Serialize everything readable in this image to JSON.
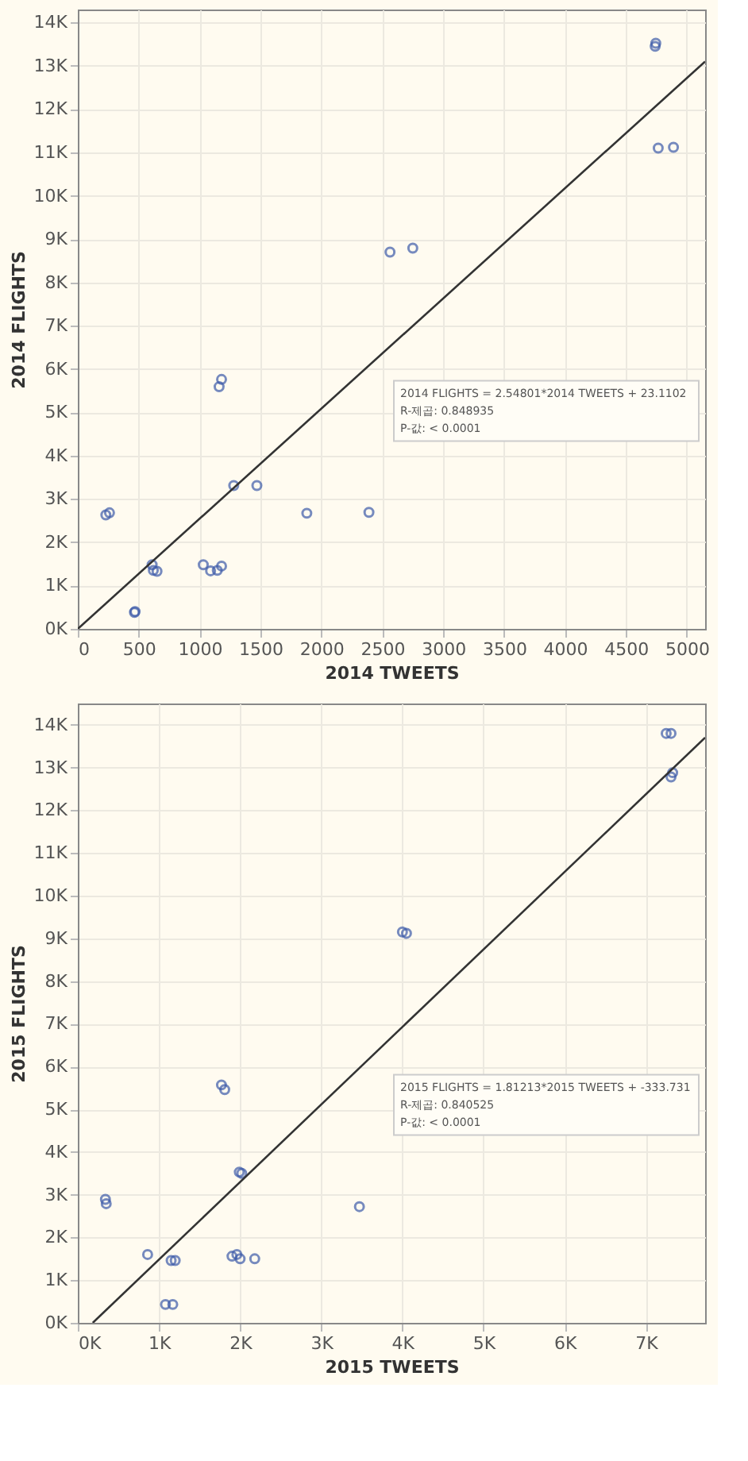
{
  "chart_data": [
    {
      "type": "scatter",
      "xlabel": "2014 TWEETS",
      "ylabel": "2014 FLIGHTS",
      "grid": true,
      "xlim": [
        0,
        5150
      ],
      "ylim": [
        0,
        14300
      ],
      "xticks": [
        0,
        500,
        1000,
        1500,
        2000,
        2500,
        3000,
        3500,
        4000,
        4500,
        5000
      ],
      "yticks": [
        {
          "value": 0,
          "label": "0K"
        },
        {
          "value": 1000,
          "label": "1K"
        },
        {
          "value": 2000,
          "label": "2K"
        },
        {
          "value": 3000,
          "label": "3K"
        },
        {
          "value": 4000,
          "label": "4K"
        },
        {
          "value": 5000,
          "label": "5K"
        },
        {
          "value": 6000,
          "label": "6K"
        },
        {
          "value": 7000,
          "label": "7K"
        },
        {
          "value": 8000,
          "label": "8K"
        },
        {
          "value": 9000,
          "label": "9K"
        },
        {
          "value": 10000,
          "label": "10K"
        },
        {
          "value": 11000,
          "label": "11K"
        },
        {
          "value": 12000,
          "label": "12K"
        },
        {
          "value": 13000,
          "label": "13K"
        },
        {
          "value": 14000,
          "label": "14K"
        }
      ],
      "series": [
        {
          "color": "#3d5ba9",
          "marker": "circle",
          "x": [
            2563,
            2750,
            4740,
            4745,
            4765,
            4890,
            1180,
            1160,
            230,
            260,
            465,
            470,
            610,
            620,
            650,
            1030,
            1090,
            1145,
            1180,
            1280,
            1470,
            1880,
            2390
          ],
          "values": [
            8700,
            8790,
            13450,
            13520,
            11100,
            11120,
            5760,
            5590,
            2630,
            2680,
            380,
            400,
            1480,
            1350,
            1330,
            1480,
            1340,
            1350,
            1450,
            3310,
            3310,
            2670,
            2690
          ]
        },
        {
          "type": "line",
          "color": "#333333",
          "x": [
            0,
            5150
          ],
          "values": [
            0,
            13100
          ]
        }
      ],
      "annotations": [
        "2014 FLIGHTS = 2.54801*2014 TWEETS + 23.1102",
        "R-제곱: 0.848935",
        "P-값: < 0.0001"
      ]
    },
    {
      "type": "scatter",
      "xlabel": "2015 TWEETS",
      "ylabel": "2015 FLIGHTS",
      "grid": true,
      "xlim": [
        0,
        7730
      ],
      "ylim": [
        0,
        14500
      ],
      "xticks": [
        {
          "value": 0,
          "label": "0K"
        },
        {
          "value": 1000,
          "label": "1K"
        },
        {
          "value": 2000,
          "label": "2K"
        },
        {
          "value": 3000,
          "label": "3K"
        },
        {
          "value": 4000,
          "label": "4K"
        },
        {
          "value": 5000,
          "label": "5K"
        },
        {
          "value": 6000,
          "label": "6K"
        },
        {
          "value": 7000,
          "label": "7K"
        }
      ],
      "yticks": [
        {
          "value": 0,
          "label": "0K"
        },
        {
          "value": 1000,
          "label": "1K"
        },
        {
          "value": 2000,
          "label": "2K"
        },
        {
          "value": 3000,
          "label": "3K"
        },
        {
          "value": 4000,
          "label": "4K"
        },
        {
          "value": 5000,
          "label": "5K"
        },
        {
          "value": 6000,
          "label": "6K"
        },
        {
          "value": 7000,
          "label": "7K"
        },
        {
          "value": 8000,
          "label": "8K"
        },
        {
          "value": 9000,
          "label": "9K"
        },
        {
          "value": 10000,
          "label": "10K"
        },
        {
          "value": 11000,
          "label": "11K"
        },
        {
          "value": 12000,
          "label": "12K"
        },
        {
          "value": 13000,
          "label": "13K"
        },
        {
          "value": 14000,
          "label": "14K"
        }
      ],
      "series": [
        {
          "color": "#3d5ba9",
          "marker": "circle",
          "x": [
            7250,
            7310,
            7330,
            7310,
            4000,
            4050,
            1770,
            1810,
            340,
            350,
            1990,
            2020,
            3470,
            860,
            1150,
            1200,
            1900,
            1960,
            2000,
            2180,
            1080,
            1170
          ],
          "values": [
            13800,
            13800,
            12880,
            12780,
            9150,
            9120,
            5570,
            5460,
            2890,
            2790,
            3530,
            3500,
            2720,
            1600,
            1460,
            1460,
            1560,
            1600,
            1500,
            1500,
            430,
            430
          ]
        },
        {
          "type": "line",
          "color": "#333333",
          "x": [
            184,
            7730
          ],
          "values": [
            0,
            13700
          ]
        }
      ],
      "annotations": [
        "2015 FLIGHTS = 1.81213*2015 TWEETS + -333.731",
        "R-제곱: 0.840525",
        "P-값: < 0.0001"
      ]
    }
  ]
}
